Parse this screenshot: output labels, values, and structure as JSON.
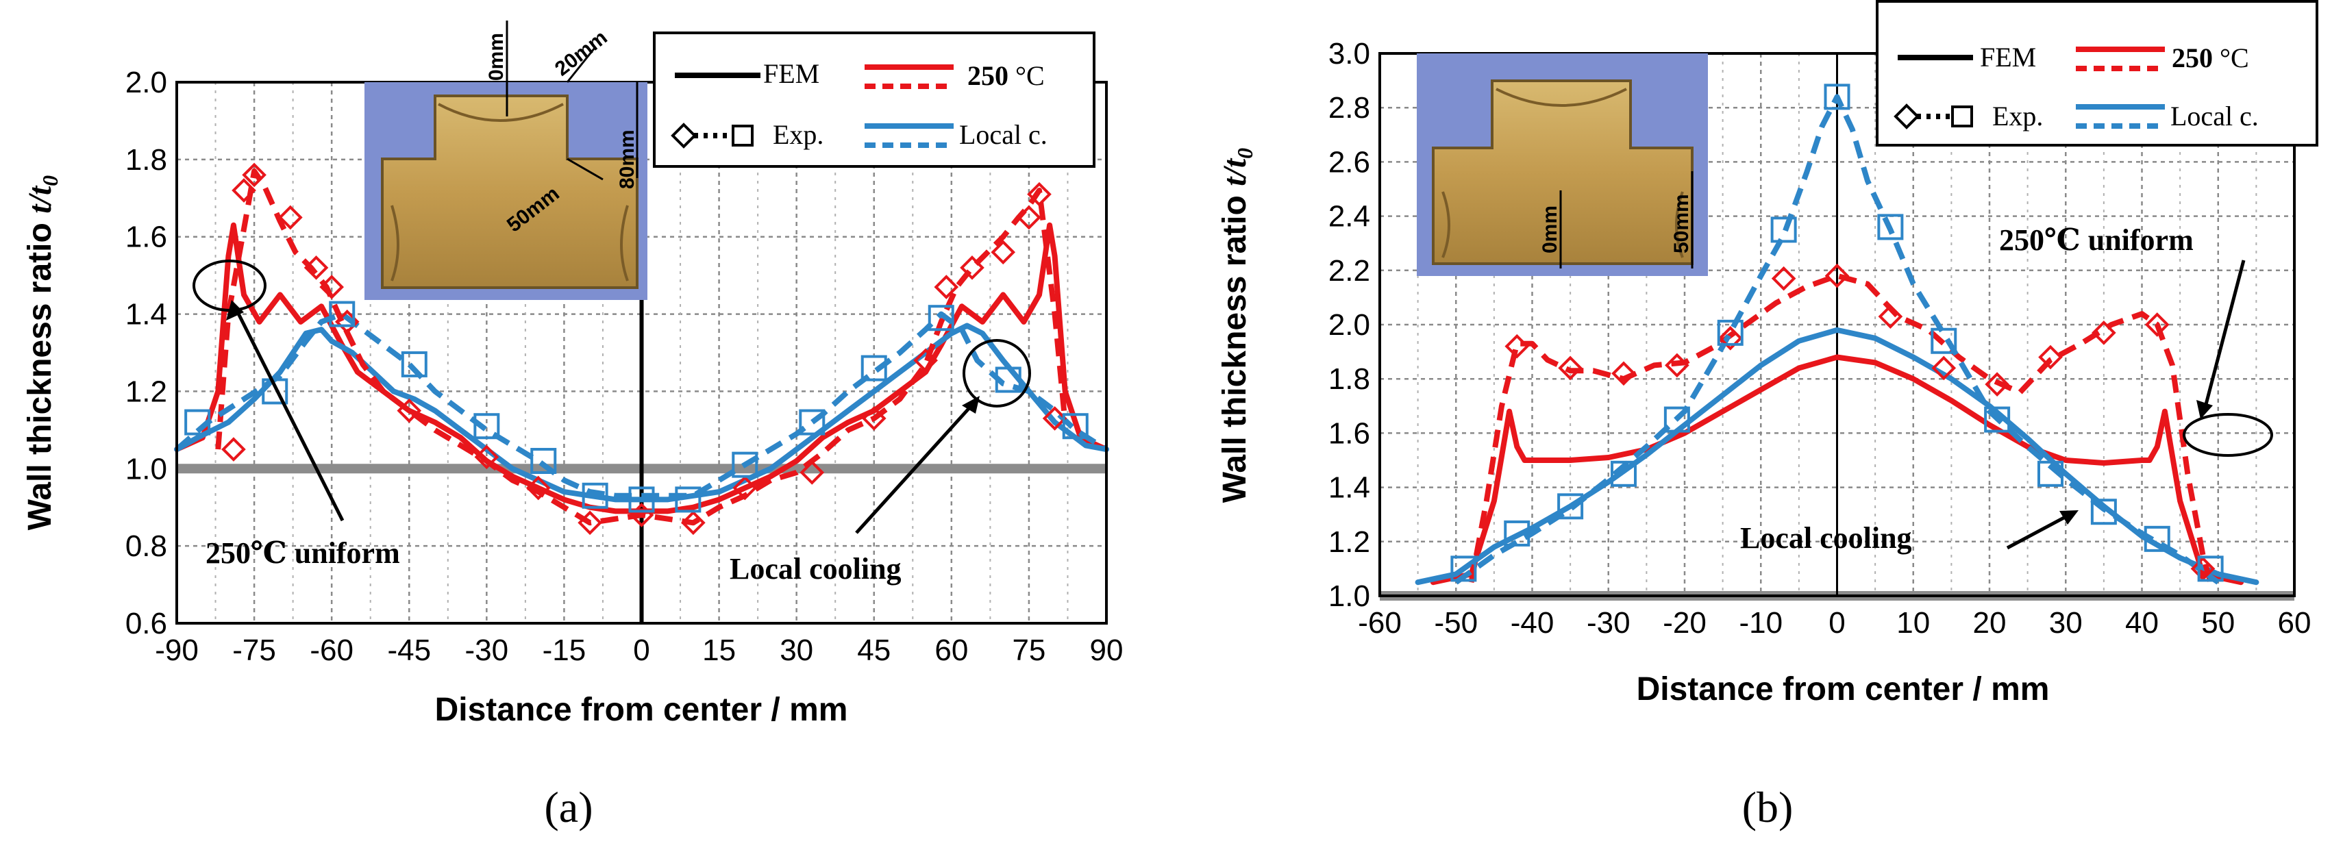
{
  "colors": {
    "red": "#e8161b",
    "blue": "#2e86c8",
    "gray": "#8c8c8c",
    "black": "#000000",
    "photo_bg": "#7e8fd0",
    "photo_tee": "#c8a454"
  },
  "chart_data": [
    {
      "id": "a",
      "type": "line",
      "panel_label": "(a)",
      "ylabel_text": "Wall thickness ratio ",
      "ylabel_var": "t/t",
      "ylabel_sub": "0",
      "xlabel": "Distance from center / mm",
      "xlim": [
        -90,
        90
      ],
      "ylim": [
        0.6,
        2.0
      ],
      "xticks": [
        -90,
        -75,
        -60,
        -45,
        -30,
        -15,
        0,
        15,
        30,
        45,
        60,
        75,
        90
      ],
      "yticks": [
        "0.6",
        "0.8",
        "1.0",
        "1.2",
        "1.4",
        "1.6",
        "1.8",
        "2.0"
      ],
      "reference_line": 1.0,
      "legend": {
        "fem": "FEM",
        "exp": "Exp.",
        "hot": "250",
        "hot_unit": " °C",
        "local": "Local c."
      },
      "annotations": {
        "uniform": "250℃  uniform",
        "cooling": "Local cooling"
      },
      "photo_labels": [
        "0mm",
        "20mm",
        "80mm",
        "50mm"
      ],
      "series": [
        {
          "name": "FEM 250 °C uniform",
          "color": "red",
          "style": "solid",
          "x": [
            -90,
            -85,
            -82,
            -80,
            -79,
            -77,
            -74,
            -70,
            -66,
            -62,
            -58,
            -55,
            -50,
            -45,
            -40,
            -35,
            -30,
            -25,
            -20,
            -15,
            -10,
            -5,
            0,
            5,
            10,
            15,
            20,
            25,
            30,
            35,
            40,
            45,
            50,
            55,
            58,
            62,
            66,
            70,
            74,
            77,
            79,
            80,
            82,
            85,
            90
          ],
          "y": [
            1.05,
            1.08,
            1.2,
            1.55,
            1.63,
            1.45,
            1.38,
            1.45,
            1.38,
            1.42,
            1.32,
            1.25,
            1.2,
            1.15,
            1.12,
            1.08,
            1.02,
            0.98,
            0.95,
            0.92,
            0.9,
            0.89,
            0.89,
            0.89,
            0.9,
            0.92,
            0.95,
            0.98,
            1.02,
            1.08,
            1.12,
            1.15,
            1.2,
            1.25,
            1.32,
            1.42,
            1.38,
            1.45,
            1.38,
            1.45,
            1.63,
            1.55,
            1.2,
            1.08,
            1.05
          ]
        },
        {
          "name": "FEM local cooling",
          "color": "blue",
          "style": "solid",
          "x": [
            -90,
            -86,
            -80,
            -75,
            -70,
            -65,
            -62,
            -60,
            -56,
            -52,
            -48,
            -44,
            -40,
            -35,
            -30,
            -25,
            -20,
            -15,
            -10,
            -5,
            0,
            5,
            10,
            15,
            20,
            25,
            30,
            35,
            40,
            45,
            50,
            55,
            60,
            63,
            66,
            70,
            75,
            80,
            84,
            86,
            90
          ],
          "y": [
            1.05,
            1.08,
            1.12,
            1.18,
            1.25,
            1.35,
            1.36,
            1.33,
            1.3,
            1.25,
            1.2,
            1.18,
            1.15,
            1.1,
            1.05,
            1.0,
            0.97,
            0.94,
            0.93,
            0.92,
            0.92,
            0.92,
            0.93,
            0.94,
            0.97,
            1.0,
            1.05,
            1.1,
            1.15,
            1.2,
            1.25,
            1.3,
            1.35,
            1.37,
            1.35,
            1.28,
            1.2,
            1.12,
            1.08,
            1.06,
            1.05
          ]
        },
        {
          "name": "Exp. 250 °C uniform",
          "color": "red",
          "style": "dashed",
          "marker": "diamond",
          "x": [
            -82,
            -80,
            -77,
            -75,
            -73,
            -70,
            -67,
            -64,
            -61,
            -58,
            -54,
            -50,
            -45,
            -40,
            -35,
            -30,
            -25,
            -20,
            -15,
            -10,
            -5,
            0,
            5,
            10,
            15,
            20,
            25,
            30,
            35,
            40,
            45,
            50,
            55,
            58,
            61,
            64,
            67,
            70,
            73,
            75,
            77,
            80,
            82
          ],
          "y": [
            1.05,
            1.4,
            1.62,
            1.77,
            1.73,
            1.64,
            1.56,
            1.52,
            1.47,
            1.38,
            1.27,
            1.2,
            1.15,
            1.1,
            1.06,
            1.02,
            0.97,
            0.94,
            0.9,
            0.86,
            0.87,
            0.88,
            0.87,
            0.86,
            0.9,
            0.93,
            0.97,
            0.99,
            1.04,
            1.1,
            1.13,
            1.18,
            1.27,
            1.38,
            1.47,
            1.52,
            1.56,
            1.6,
            1.65,
            1.68,
            1.72,
            1.4,
            1.12
          ],
          "markers_x": [
            -79,
            -77,
            -75,
            -68,
            -63,
            -60,
            -57,
            -45,
            -30,
            -20,
            -10,
            0,
            10,
            20,
            33,
            45,
            55,
            59,
            64,
            70,
            75,
            77,
            80
          ],
          "markers_y": [
            1.05,
            1.72,
            1.76,
            1.65,
            1.52,
            1.47,
            1.38,
            1.15,
            1.03,
            0.95,
            0.86,
            0.88,
            0.86,
            0.95,
            0.99,
            1.13,
            1.28,
            1.47,
            1.52,
            1.56,
            1.65,
            1.71,
            1.13
          ]
        },
        {
          "name": "Exp. local cooling",
          "color": "blue",
          "style": "dashed",
          "marker": "square",
          "x": [
            -90,
            -84,
            -77,
            -70,
            -65,
            -62,
            -58,
            -54,
            -50,
            -45,
            -40,
            -35,
            -30,
            -25,
            -20,
            -15,
            -10,
            -5,
            0,
            5,
            10,
            15,
            20,
            25,
            30,
            35,
            40,
            45,
            50,
            55,
            58,
            62,
            65,
            70,
            75,
            80,
            84,
            90
          ],
          "y": [
            1.05,
            1.12,
            1.18,
            1.24,
            1.33,
            1.38,
            1.4,
            1.36,
            1.32,
            1.27,
            1.2,
            1.15,
            1.1,
            1.06,
            1.02,
            0.97,
            0.94,
            0.93,
            0.93,
            0.93,
            0.93,
            0.97,
            1.01,
            1.05,
            1.09,
            1.14,
            1.2,
            1.25,
            1.3,
            1.36,
            1.4,
            1.36,
            1.28,
            1.22,
            1.2,
            1.15,
            1.1,
            1.05
          ],
          "markers_x": [
            -86,
            -71,
            -58,
            -44,
            -30,
            -19,
            -9,
            0,
            9,
            20,
            33,
            45,
            58,
            71,
            84
          ],
          "markers_y": [
            1.12,
            1.2,
            1.4,
            1.27,
            1.11,
            1.02,
            0.93,
            0.92,
            0.92,
            1.01,
            1.12,
            1.26,
            1.39,
            1.23,
            1.11
          ]
        }
      ]
    },
    {
      "id": "b",
      "type": "line",
      "panel_label": "(b)",
      "ylabel_text": "Wall thickness ratio ",
      "ylabel_var": "t/t",
      "ylabel_sub": "0",
      "xlabel": "Distance from center / mm",
      "xlim": [
        -60,
        60
      ],
      "ylim": [
        1.0,
        3.0
      ],
      "xticks": [
        -60,
        -50,
        -40,
        -30,
        -20,
        -10,
        0,
        10,
        20,
        30,
        40,
        50,
        60
      ],
      "yticks": [
        "1.0",
        "1.2",
        "1.4",
        "1.6",
        "1.8",
        "2.0",
        "2.2",
        "2.4",
        "2.6",
        "2.8",
        "3.0"
      ],
      "reference_line": 1.0,
      "legend": {
        "fem": "FEM",
        "exp": "Exp.",
        "hot": "250",
        "hot_unit": " °C",
        "local": "Local c."
      },
      "annotations": {
        "uniform": "250℃  uniform",
        "cooling": "Local cooling"
      },
      "photo_labels": [
        "0mm",
        "50mm"
      ],
      "series": [
        {
          "name": "FEM 250 °C uniform",
          "color": "red",
          "style": "solid",
          "x": [
            -53,
            -48,
            -45,
            -43,
            -42,
            -41,
            -40,
            -35,
            -30,
            -25,
            -20,
            -15,
            -10,
            -5,
            0,
            5,
            10,
            15,
            20,
            25,
            30,
            35,
            40,
            41,
            42,
            43,
            45,
            48,
            53
          ],
          "y": [
            1.05,
            1.08,
            1.35,
            1.68,
            1.55,
            1.5,
            1.5,
            1.5,
            1.51,
            1.54,
            1.6,
            1.68,
            1.76,
            1.84,
            1.88,
            1.86,
            1.8,
            1.72,
            1.63,
            1.55,
            1.5,
            1.49,
            1.5,
            1.5,
            1.55,
            1.68,
            1.35,
            1.08,
            1.05
          ]
        },
        {
          "name": "FEM local cooling",
          "color": "blue",
          "style": "solid",
          "x": [
            -55,
            -50,
            -45,
            -40,
            -35,
            -30,
            -25,
            -20,
            -15,
            -10,
            -5,
            0,
            5,
            10,
            15,
            20,
            25,
            30,
            35,
            40,
            45,
            50,
            55
          ],
          "y": [
            1.05,
            1.08,
            1.18,
            1.25,
            1.33,
            1.42,
            1.52,
            1.63,
            1.74,
            1.85,
            1.94,
            1.98,
            1.95,
            1.88,
            1.8,
            1.7,
            1.58,
            1.45,
            1.33,
            1.22,
            1.14,
            1.08,
            1.05
          ]
        },
        {
          "name": "Exp. 250 °C uniform",
          "color": "red",
          "style": "dashed",
          "marker": "diamond",
          "x": [
            -48,
            -46,
            -44,
            -42,
            -40,
            -38,
            -35,
            -32,
            -28,
            -24,
            -20,
            -16,
            -12,
            -8,
            -4,
            0,
            4,
            8,
            12,
            16,
            20,
            24,
            28,
            32,
            36,
            40,
            42,
            44,
            46,
            48,
            49
          ],
          "y": [
            1.05,
            1.35,
            1.7,
            1.93,
            1.93,
            1.87,
            1.83,
            1.83,
            1.8,
            1.85,
            1.86,
            1.92,
            2.0,
            2.08,
            2.14,
            2.18,
            2.15,
            2.03,
            1.98,
            1.88,
            1.8,
            1.75,
            1.87,
            1.93,
            2.0,
            2.04,
            2.0,
            1.85,
            1.45,
            1.15,
            1.05
          ],
          "markers_x": [
            -42,
            -35,
            -28,
            -21,
            -14,
            -7,
            0,
            7,
            14,
            21,
            28,
            35,
            42,
            48
          ],
          "markers_y": [
            1.92,
            1.84,
            1.82,
            1.85,
            1.95,
            2.17,
            2.18,
            2.03,
            1.84,
            1.78,
            1.88,
            1.97,
            2.0,
            1.1
          ]
        },
        {
          "name": "Exp. local cooling",
          "color": "blue",
          "style": "dashed",
          "marker": "square",
          "x": [
            -50,
            -45,
            -40,
            -35,
            -30,
            -25,
            -20,
            -15,
            -10,
            -7,
            -4,
            -2,
            0,
            2,
            4,
            7,
            10,
            15,
            20,
            25,
            30,
            35,
            40,
            45,
            50
          ],
          "y": [
            1.05,
            1.15,
            1.23,
            1.32,
            1.43,
            1.55,
            1.68,
            1.92,
            2.18,
            2.33,
            2.56,
            2.73,
            2.84,
            2.72,
            2.53,
            2.35,
            2.15,
            1.92,
            1.68,
            1.55,
            1.43,
            1.32,
            1.23,
            1.15,
            1.05
          ],
          "markers_x": [
            -49,
            -42,
            -35,
            -28,
            -21,
            -14,
            -7,
            0,
            7,
            14,
            21,
            28,
            35,
            42,
            49
          ],
          "markers_y": [
            1.1,
            1.23,
            1.33,
            1.45,
            1.65,
            1.97,
            2.35,
            2.84,
            2.36,
            1.94,
            1.65,
            1.45,
            1.31,
            1.21,
            1.1
          ]
        }
      ]
    }
  ]
}
